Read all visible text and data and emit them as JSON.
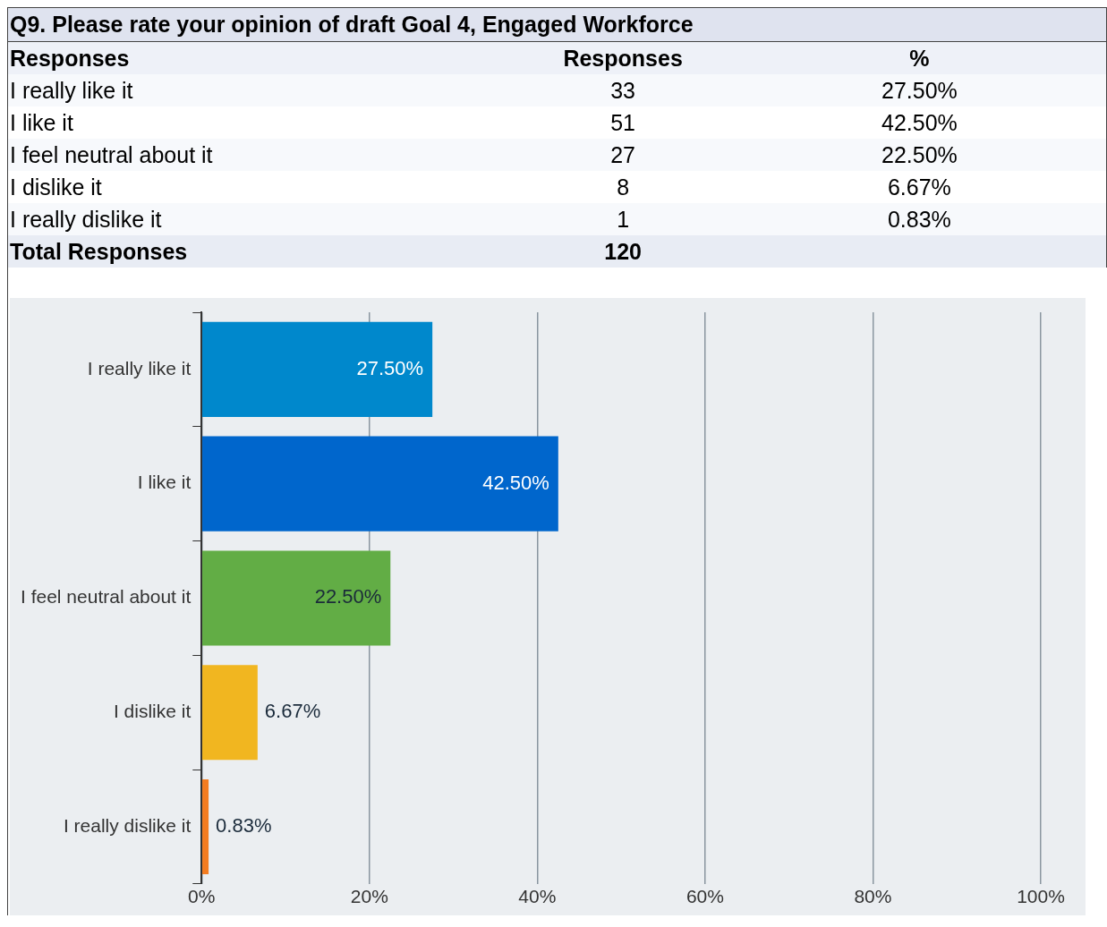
{
  "chart_data": [
    {
      "type": "other",
      "title": "Q9. Please rate your opinion of draft Goal 4, Engaged Workforce",
      "categories": [
        "I really like it",
        "I like it",
        "I feel neutral about it",
        "I dislike it",
        "I really dislike it"
      ],
      "values": [
        33,
        51,
        27,
        8,
        1
      ],
      "data_labels": true,
      "annotations": [
        "Responses",
        "Responses",
        "%",
        "Total Responses",
        "120"
      ]
    },
    {
      "type": "bar",
      "orientation": "horizontal",
      "categories": [
        "I really like it",
        "I like it",
        "I feel neutral about it",
        "I dislike it",
        "I really dislike it"
      ],
      "values": [
        27.5,
        42.5,
        22.5,
        6.67,
        0.83
      ],
      "colors": [
        "#0088cc",
        "#0066cc",
        "#62ad45",
        "#f1b620",
        "#f47c20"
      ],
      "value_labels": [
        "27.50%",
        "42.50%",
        "22.50%",
        "6.67%",
        "0.83%"
      ],
      "xlim": [
        0,
        100
      ],
      "xticks": [
        {
          "value": 0,
          "label": "0%"
        },
        {
          "value": 20,
          "label": "20%"
        },
        {
          "value": 40,
          "label": "40%"
        },
        {
          "value": 60,
          "label": "60%"
        },
        {
          "value": 80,
          "label": "80%"
        },
        {
          "value": 100,
          "label": "100%"
        }
      ],
      "grid": "x",
      "legend": false
    }
  ]
}
